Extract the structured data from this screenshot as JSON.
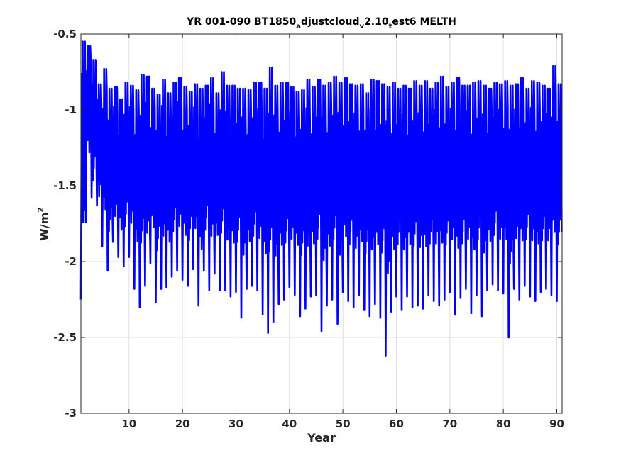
{
  "chart_data": {
    "type": "line",
    "title": {
      "parts": [
        {
          "text": "YR 001-090 BT1850",
          "shift": "base"
        },
        {
          "text": "a",
          "shift": "sub"
        },
        {
          "text": "djustcloud",
          "shift": "base"
        },
        {
          "text": "v",
          "shift": "sub"
        },
        {
          "text": "2.10",
          "shift": "base"
        },
        {
          "text": "t",
          "shift": "sub"
        },
        {
          "text": "est6 MELTH",
          "shift": "base"
        }
      ]
    },
    "xlabel": "Year",
    "ylabel": {
      "base": "W/m",
      "sup": "2"
    },
    "xlim": [
      1,
      91
    ],
    "ylim": [
      -3,
      -0.5
    ],
    "xticks": [
      10,
      20,
      30,
      40,
      50,
      60,
      70,
      80,
      90
    ],
    "yticks": [
      -3,
      -2.5,
      -2,
      -1.5,
      -1,
      -0.5
    ],
    "xtick_labels": [
      "10",
      "20",
      "30",
      "40",
      "50",
      "60",
      "70",
      "80",
      "90"
    ],
    "ytick_labels": [
      "-3",
      "-2.5",
      "-2",
      "-1.5",
      "-1",
      "-0.5"
    ],
    "grid": true,
    "series_color": "#0000ff",
    "series": [
      {
        "samples_per_year": 12,
        "yearly_min": [
          -2.25,
          -1.3,
          -1.58,
          -1.63,
          -1.9,
          -2.06,
          -1.87,
          -1.97,
          -2.03,
          -1.97,
          -2.18,
          -2.3,
          -2.16,
          -2.01,
          -2.27,
          -2.18,
          -2.17,
          -2.1,
          -2.06,
          -2.12,
          -2.16,
          -2.05,
          -2.29,
          -2.06,
          -2.19,
          -2.08,
          -2.19,
          -2.19,
          -2.23,
          -2.2,
          -2.37,
          -2.18,
          -2.16,
          -2.19,
          -2.35,
          -2.47,
          -2.4,
          -2.28,
          -2.25,
          -2.17,
          -2.22,
          -2.36,
          -2.31,
          -2.23,
          -2.22,
          -2.46,
          -2.29,
          -2.25,
          -2.41,
          -2.2,
          -2.26,
          -2.3,
          -2.22,
          -2.32,
          -2.36,
          -2.28,
          -2.37,
          -2.62,
          -2.33,
          -2.23,
          -2.32,
          -2.23,
          -2.3,
          -2.29,
          -2.31,
          -2.22,
          -2.26,
          -2.29,
          -2.25,
          -2.2,
          -2.35,
          -2.24,
          -2.18,
          -2.34,
          -2.22,
          -2.36,
          -2.19,
          -2.15,
          -2.19,
          -2.21,
          -2.5,
          -2.18,
          -2.25,
          -2.16,
          -2.23,
          -2.26,
          -2.2,
          -2.18,
          -2.22,
          -2.26
        ],
        "yearly_max": [
          -0.55,
          -0.58,
          -0.67,
          -0.83,
          -0.73,
          -0.86,
          -0.85,
          -0.93,
          -0.82,
          -0.84,
          -0.87,
          -0.77,
          -0.78,
          -0.86,
          -0.9,
          -0.8,
          -0.89,
          -0.82,
          -0.79,
          -0.85,
          -0.88,
          -0.83,
          -0.86,
          -0.84,
          -0.79,
          -0.89,
          -0.75,
          -0.84,
          -0.84,
          -0.86,
          -0.86,
          -0.87,
          -0.82,
          -0.82,
          -0.86,
          -0.72,
          -0.84,
          -0.82,
          -0.82,
          -0.85,
          -0.88,
          -0.87,
          -0.8,
          -0.85,
          -0.8,
          -0.84,
          -0.82,
          -0.78,
          -0.82,
          -0.79,
          -0.83,
          -0.84,
          -0.83,
          -0.89,
          -0.8,
          -0.81,
          -0.83,
          -0.85,
          -0.82,
          -0.86,
          -0.84,
          -0.86,
          -0.81,
          -0.84,
          -0.81,
          -0.86,
          -0.82,
          -0.78,
          -0.85,
          -0.82,
          -0.79,
          -0.84,
          -0.84,
          -0.82,
          -0.81,
          -0.84,
          -0.86,
          -0.82,
          -0.83,
          -0.81,
          -0.84,
          -0.83,
          -0.79,
          -0.86,
          -0.81,
          -0.82,
          -0.84,
          -0.86,
          -0.71,
          -0.83
        ]
      }
    ]
  }
}
